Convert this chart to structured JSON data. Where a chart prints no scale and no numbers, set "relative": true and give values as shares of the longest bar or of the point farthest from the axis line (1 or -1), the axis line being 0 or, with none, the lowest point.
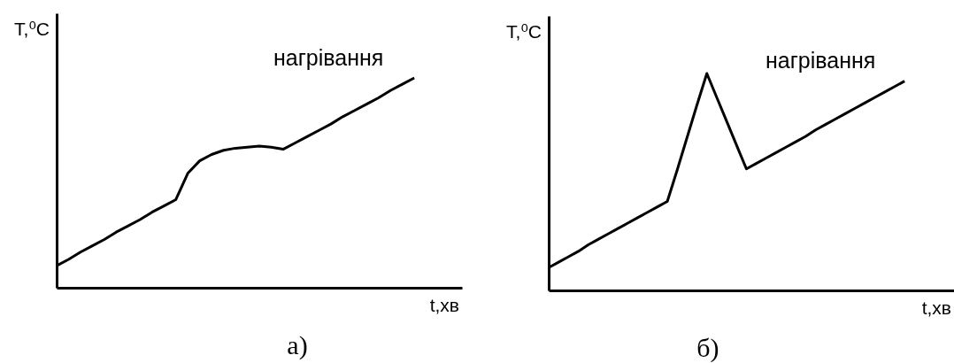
{
  "chart_data": [
    {
      "type": "line",
      "relative": true,
      "title": "а)",
      "xlabel": "t,хв",
      "ylabel": "T,⁰C",
      "annotations": [
        "нагрівання"
      ],
      "categories": [
        null,
        null,
        null,
        null,
        null,
        null,
        null,
        null,
        null,
        null,
        null,
        null,
        null,
        null,
        null,
        null,
        null,
        null,
        null,
        null,
        null,
        null,
        null,
        null,
        null,
        null,
        null,
        null,
        null,
        null,
        null,
        null,
        null,
        null,
        null
      ],
      "series": [
        {
          "color": "#000000",
          "values": [
            0.105,
            0.135,
            0.17,
            0.2,
            0.23,
            0.265,
            0.295,
            0.325,
            0.36,
            0.39,
            0.42,
            0.545,
            0.605,
            0.635,
            0.655,
            0.665,
            0.67,
            0.675,
            0.67,
            0.66,
            0.69,
            0.72,
            0.75,
            0.78,
            0.815,
            0.845,
            0.875,
            0.905,
            0.94,
            0.97,
            1,
            null,
            null,
            null,
            null
          ]
        }
      ]
    },
    {
      "type": "line",
      "relative": true,
      "title": "б)",
      "xlabel": "t,хв",
      "ylabel": "T,⁰C",
      "annotations": [
        "нагрівання"
      ],
      "categories": [
        null,
        null,
        null,
        null,
        null,
        null,
        null,
        null,
        null,
        null,
        null,
        null,
        null,
        null,
        null,
        null,
        null,
        null,
        null,
        null,
        null,
        null,
        null,
        null,
        null,
        null,
        null,
        null,
        null,
        null,
        null,
        null,
        null,
        null,
        null,
        null,
        null,
        null,
        null,
        null,
        null,
        null
      ],
      "series": [
        {
          "color": "#000000",
          "values": [
            0.105,
            0.13,
            0.155,
            0.18,
            0.21,
            0.235,
            0.26,
            0.285,
            0.31,
            0.335,
            0.36,
            0.385,
            0.41,
            0.555,
            0.705,
            0.855,
            1,
            0.89,
            0.78,
            0.67,
            0.56,
            0.585,
            0.61,
            0.635,
            0.66,
            0.685,
            0.71,
            0.74,
            0.765,
            0.79,
            0.815,
            0.84,
            0.865,
            0.89,
            0.915,
            0.94,
            0.965,
            null,
            null,
            null,
            null,
            null
          ]
        }
      ]
    }
  ]
}
